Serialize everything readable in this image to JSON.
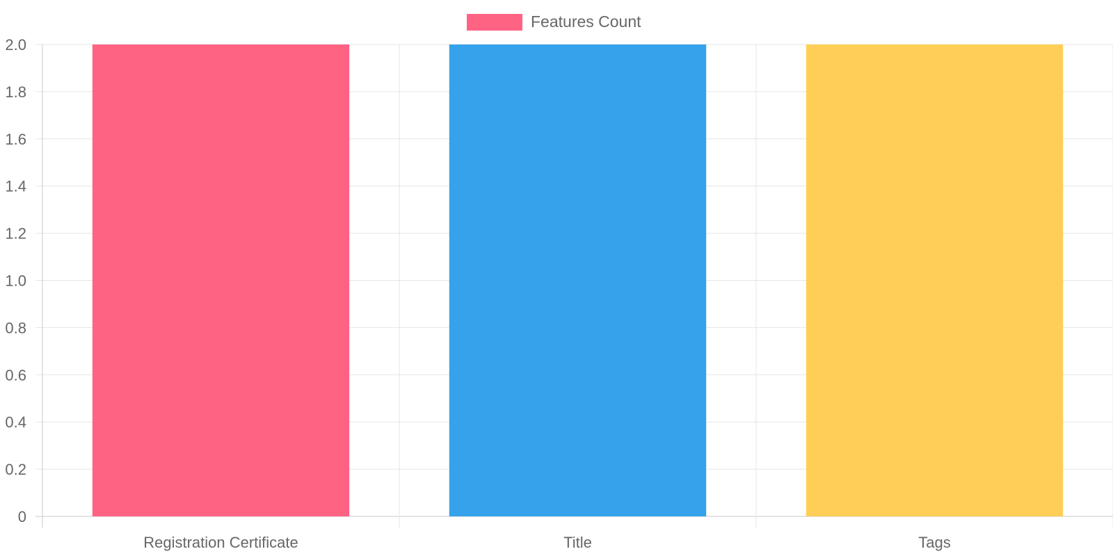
{
  "chart_data": {
    "type": "bar",
    "categories": [
      "Registration Certificate",
      "Title",
      "Tags"
    ],
    "series": [
      {
        "name": "Features Count",
        "values": [
          2,
          2,
          2
        ],
        "colors": [
          "#ff6384",
          "#36a2eb",
          "#ffce56"
        ]
      }
    ],
    "legend": {
      "label": "Features Count",
      "swatch_color": "#ff6384",
      "placement": "top-center"
    },
    "ylim": [
      0,
      2.0
    ],
    "yticks": [
      "0",
      "0.2",
      "0.4",
      "0.6",
      "0.8",
      "1.0",
      "1.2",
      "1.4",
      "1.6",
      "1.8",
      "2.0"
    ],
    "grid": true,
    "title": "",
    "xlabel": "",
    "ylabel": ""
  }
}
